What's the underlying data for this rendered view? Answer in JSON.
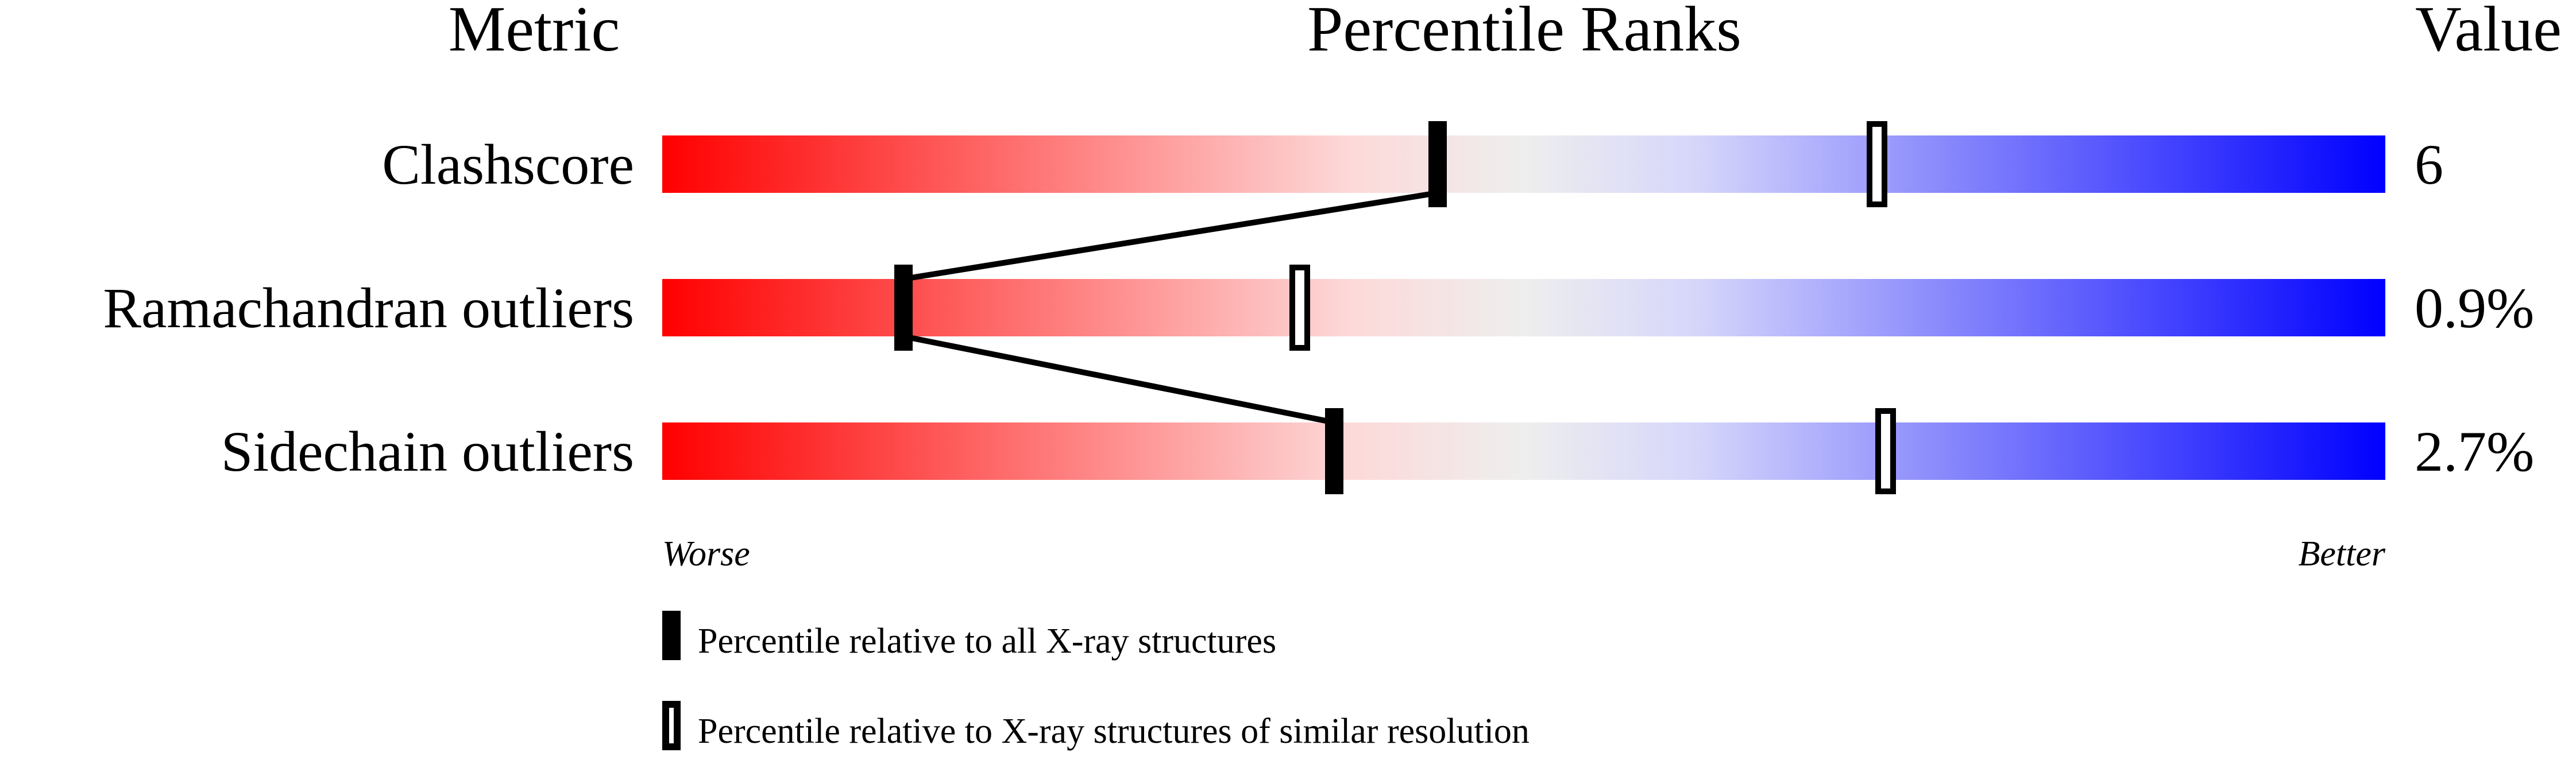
{
  "chart_data": {
    "type": "percentile-bar",
    "headers": {
      "metric": "Metric",
      "ranks": "Percentile Ranks",
      "value": "Value"
    },
    "xlim": [
      0,
      100
    ],
    "gradient_colors": [
      "#ff0000",
      "#fdd9d9",
      "#eeeeee",
      "#d6d6fb",
      "#0000ff"
    ],
    "rows": [
      {
        "metric": "Clashscore",
        "value": "6",
        "percentile_all": 45,
        "percentile_similar": 70.5
      },
      {
        "metric": "Ramachandran outliers",
        "value": "0.9%",
        "percentile_all": 14,
        "percentile_similar": 37
      },
      {
        "metric": "Sidechain outliers",
        "value": "2.7%",
        "percentile_all": 39,
        "percentile_similar": 71
      }
    ],
    "axis": {
      "left": "Worse",
      "right": "Better"
    },
    "legend": [
      {
        "marker": "filled",
        "label": "Percentile relative to all X-ray structures"
      },
      {
        "marker": "open",
        "label": "Percentile relative to X-ray structures of similar resolution"
      }
    ]
  }
}
